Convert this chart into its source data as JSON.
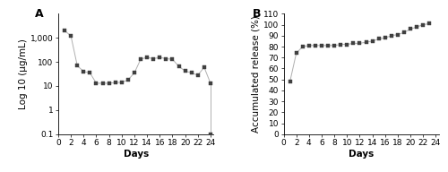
{
  "panel_A": {
    "title": "A",
    "xlabel": "Days",
    "ylabel": "Log 10 (μg/mL)",
    "x": [
      1,
      2,
      3,
      4,
      5,
      6,
      7,
      8,
      9,
      10,
      11,
      12,
      13,
      14,
      15,
      16,
      17,
      18,
      19,
      20,
      21,
      22,
      23,
      24
    ],
    "y": [
      2000,
      1200,
      70,
      40,
      35,
      13,
      13,
      13,
      14,
      14,
      18,
      35,
      130,
      155,
      135,
      155,
      135,
      130,
      65,
      42,
      35,
      28,
      60,
      13
    ],
    "y_last_point": 0.1,
    "ylim_log": [
      0.1,
      10000
    ],
    "yticks": [
      0.1,
      1,
      10,
      100,
      1000
    ],
    "yticklabels": [
      "0.1",
      "1",
      "10",
      "100",
      "1,000"
    ],
    "xticks": [
      0,
      2,
      4,
      6,
      8,
      10,
      12,
      14,
      16,
      18,
      20,
      22,
      24
    ],
    "xlim": [
      0,
      24.5
    ]
  },
  "panel_B": {
    "title": "B",
    "xlabel": "Days",
    "ylabel": "Accumulated release (%)",
    "x": [
      1,
      2,
      3,
      4,
      5,
      6,
      7,
      8,
      9,
      10,
      11,
      12,
      13,
      14,
      15,
      16,
      17,
      18,
      19,
      20,
      21,
      22,
      23
    ],
    "y": [
      48,
      74,
      80,
      81,
      81,
      81,
      81,
      81,
      82,
      82,
      83,
      83,
      84,
      85,
      87,
      88,
      90,
      91,
      93,
      96,
      98,
      100,
      101
    ],
    "ylim": [
      0,
      110
    ],
    "yticks": [
      0,
      10,
      20,
      30,
      40,
      50,
      60,
      70,
      80,
      90,
      100,
      110
    ],
    "yticklabels": [
      "0",
      "10",
      "20",
      "30",
      "40",
      "50",
      "60",
      "70",
      "80",
      "90",
      "100",
      "110"
    ],
    "xticks": [
      0,
      2,
      4,
      6,
      8,
      10,
      12,
      14,
      16,
      18,
      20,
      22,
      24
    ],
    "xlim": [
      0,
      24.5
    ]
  },
  "marker": "s",
  "markersize": 2.8,
  "linewidth": 0.7,
  "line_color": "#b0b0b0",
  "marker_color": "#404040",
  "background_color": "#ffffff",
  "font_size_label": 7.5,
  "font_size_tick": 6.5,
  "font_size_title": 9,
  "font_family": "DejaVu Sans"
}
